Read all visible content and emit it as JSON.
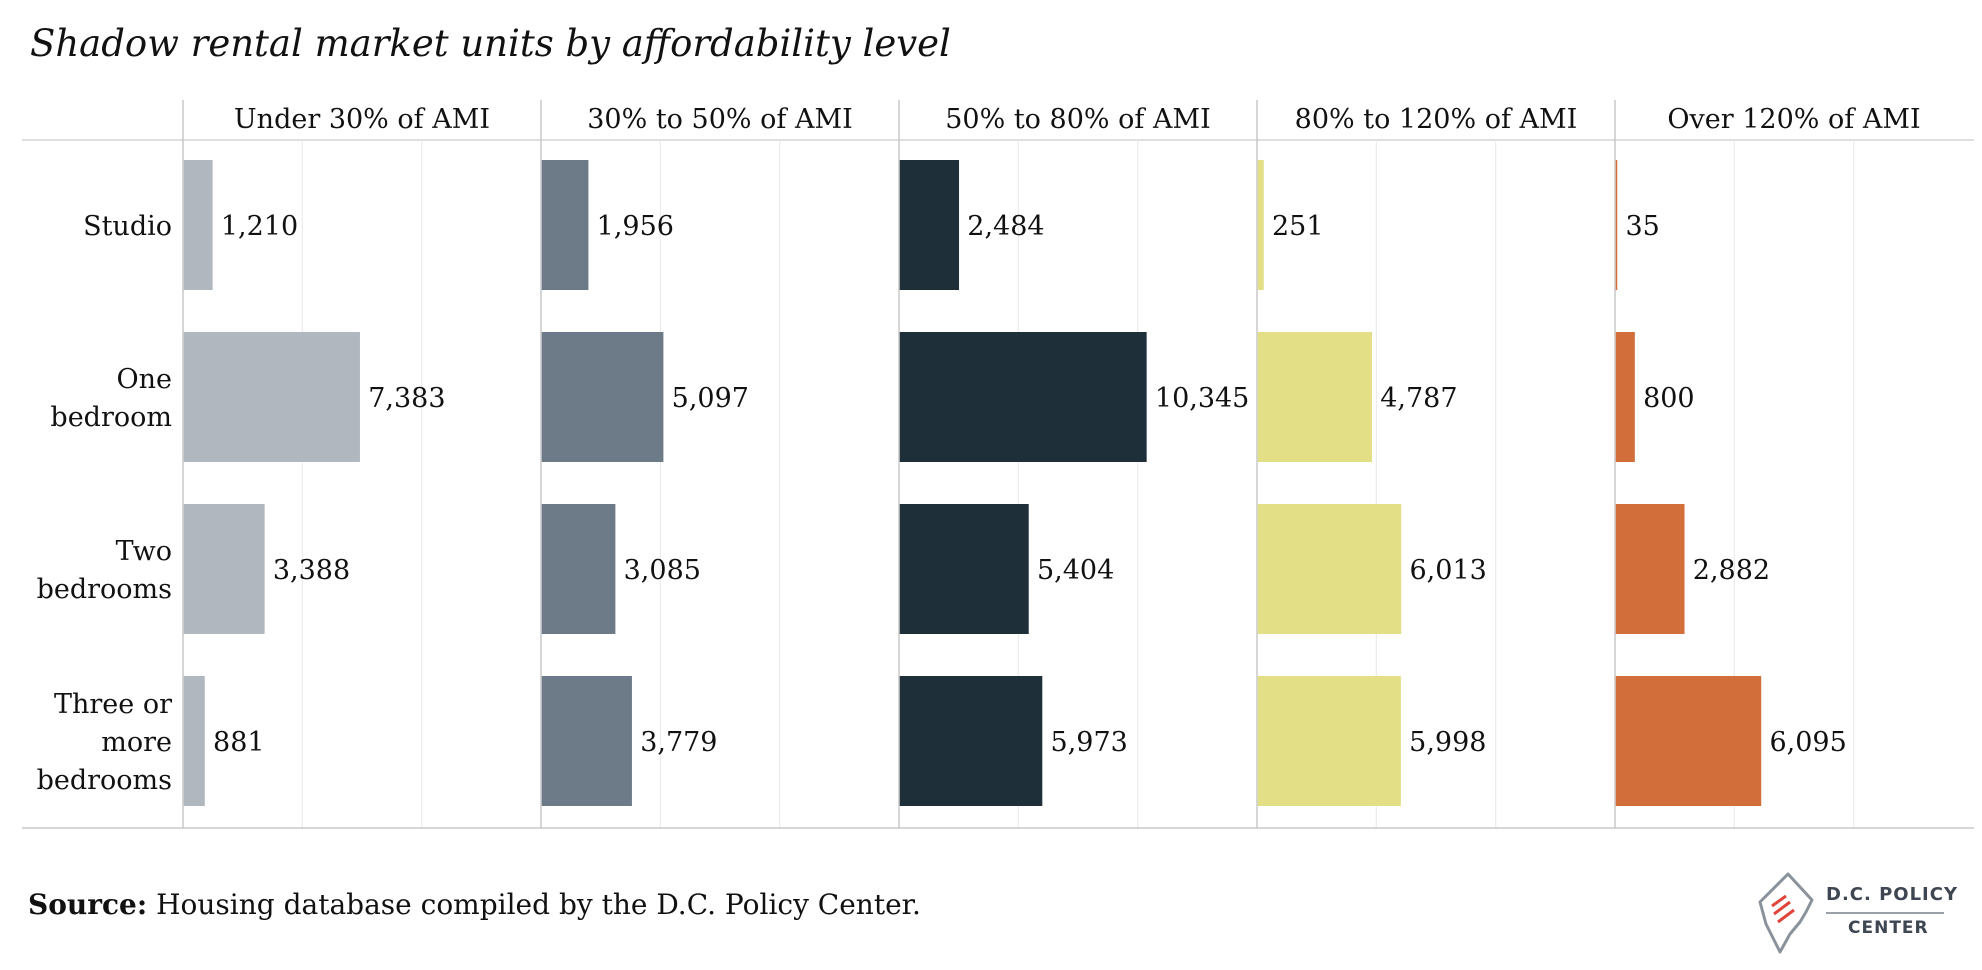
{
  "title": "Shadow rental market units by affordability level",
  "source": {
    "label": "Source:",
    "text": "Housing database compiled by the D.C. Policy Center."
  },
  "logo": {
    "line1": "D.C. POLICY",
    "line2": "CENTER"
  },
  "chart_data": {
    "type": "bar",
    "orientation": "horizontal",
    "panels": [
      {
        "label": "Under 30% of AMI",
        "color": "#b0b7bf"
      },
      {
        "label": "30% to 50% of AMI",
        "color": "#6d7b89"
      },
      {
        "label": "50% to 80% of AMI",
        "color": "#1f2f3a"
      },
      {
        "label": "80% to 120% of AMI",
        "color": "#e3df86"
      },
      {
        "label": "Over 120% of AMI",
        "color": "#d26e3a"
      }
    ],
    "categories": [
      [
        "Studio"
      ],
      [
        "One",
        "bedroom"
      ],
      [
        "Two",
        "bedrooms"
      ],
      [
        "Three or",
        "more",
        "bedrooms"
      ]
    ],
    "series": [
      {
        "name": "Under 30% of AMI",
        "values": [
          1210,
          7383,
          3388,
          881
        ]
      },
      {
        "name": "30% to 50% of AMI",
        "values": [
          1956,
          5097,
          3085,
          3779
        ]
      },
      {
        "name": "50% to 80% of AMI",
        "values": [
          2484,
          10345,
          5404,
          5973
        ]
      },
      {
        "name": "80% to 120% of AMI",
        "values": [
          251,
          4787,
          6013,
          5998
        ]
      },
      {
        "name": "Over 120% of AMI",
        "values": [
          35,
          800,
          2882,
          6095
        ]
      }
    ],
    "value_labels": [
      [
        "1,210",
        "7,383",
        "3,388",
        "881"
      ],
      [
        "1,956",
        "5,097",
        "3,085",
        "3,779"
      ],
      [
        "2,484",
        "10,345",
        "5,404",
        "5,973"
      ],
      [
        "251",
        "4,787",
        "6,013",
        "5,998"
      ],
      [
        "35",
        "800",
        "2,882",
        "6,095"
      ]
    ],
    "xlim": [
      0,
      15000
    ],
    "x_grid_step": 5000,
    "grid": true,
    "x_tick_labels": false
  }
}
